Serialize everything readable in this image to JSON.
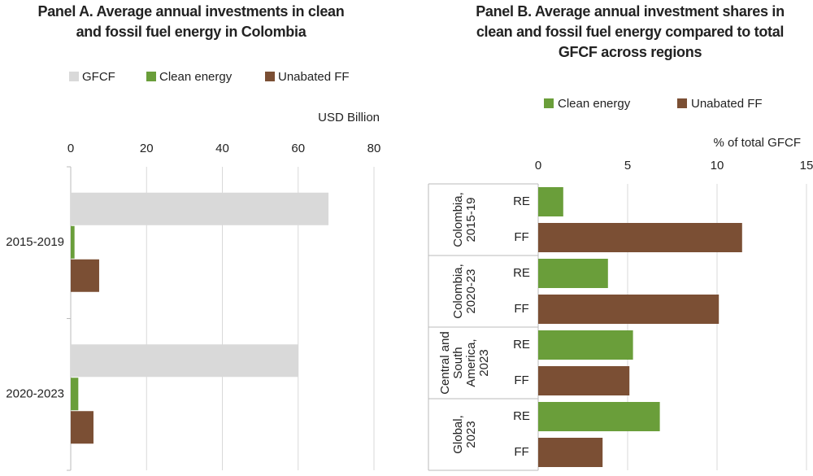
{
  "chart_data": [
    {
      "type": "hbar",
      "title": "Panel A. Average annual investments in clean and fossil fuel energy in Colombia",
      "x_label": "USD Billion",
      "categories": [
        "2015-2019",
        "2020-2023"
      ],
      "series": [
        {
          "name": "GFCF",
          "color": "#d9d9d9",
          "values": [
            68,
            60
          ]
        },
        {
          "name": "Clean energy",
          "color": "#6a9e3a",
          "values": [
            1,
            2
          ]
        },
        {
          "name": "Unabated FF",
          "color": "#7b4f34",
          "values": [
            7.5,
            6
          ]
        }
      ],
      "xlim": [
        0,
        80
      ],
      "xticks": [
        0,
        20,
        40,
        60,
        80
      ],
      "grid": true
    },
    {
      "type": "grouped_hbar",
      "title": "Panel B. Average annual investment shares in clean and fossil fuel energy compared to total GFCF across regions",
      "x_label": "% of total GFCF",
      "categories": [
        [
          "Colombia,",
          "2015-19"
        ],
        [
          "Colombia,",
          "2020-23"
        ],
        [
          "Central and",
          "South",
          "America,",
          "2023"
        ],
        [
          "Global,",
          "2023"
        ]
      ],
      "sub_categories": [
        "RE",
        "FF"
      ],
      "series": [
        {
          "name": "Clean energy",
          "color": "#6a9e3a",
          "values": [
            1.4,
            3.9,
            5.3,
            6.8
          ]
        },
        {
          "name": "Unabated FF",
          "color": "#7b4f34",
          "values": [
            11.4,
            10.1,
            5.1,
            3.6
          ]
        }
      ],
      "xlim": [
        0,
        15
      ],
      "xticks": [
        0,
        5,
        10,
        15
      ],
      "grid": true
    }
  ]
}
